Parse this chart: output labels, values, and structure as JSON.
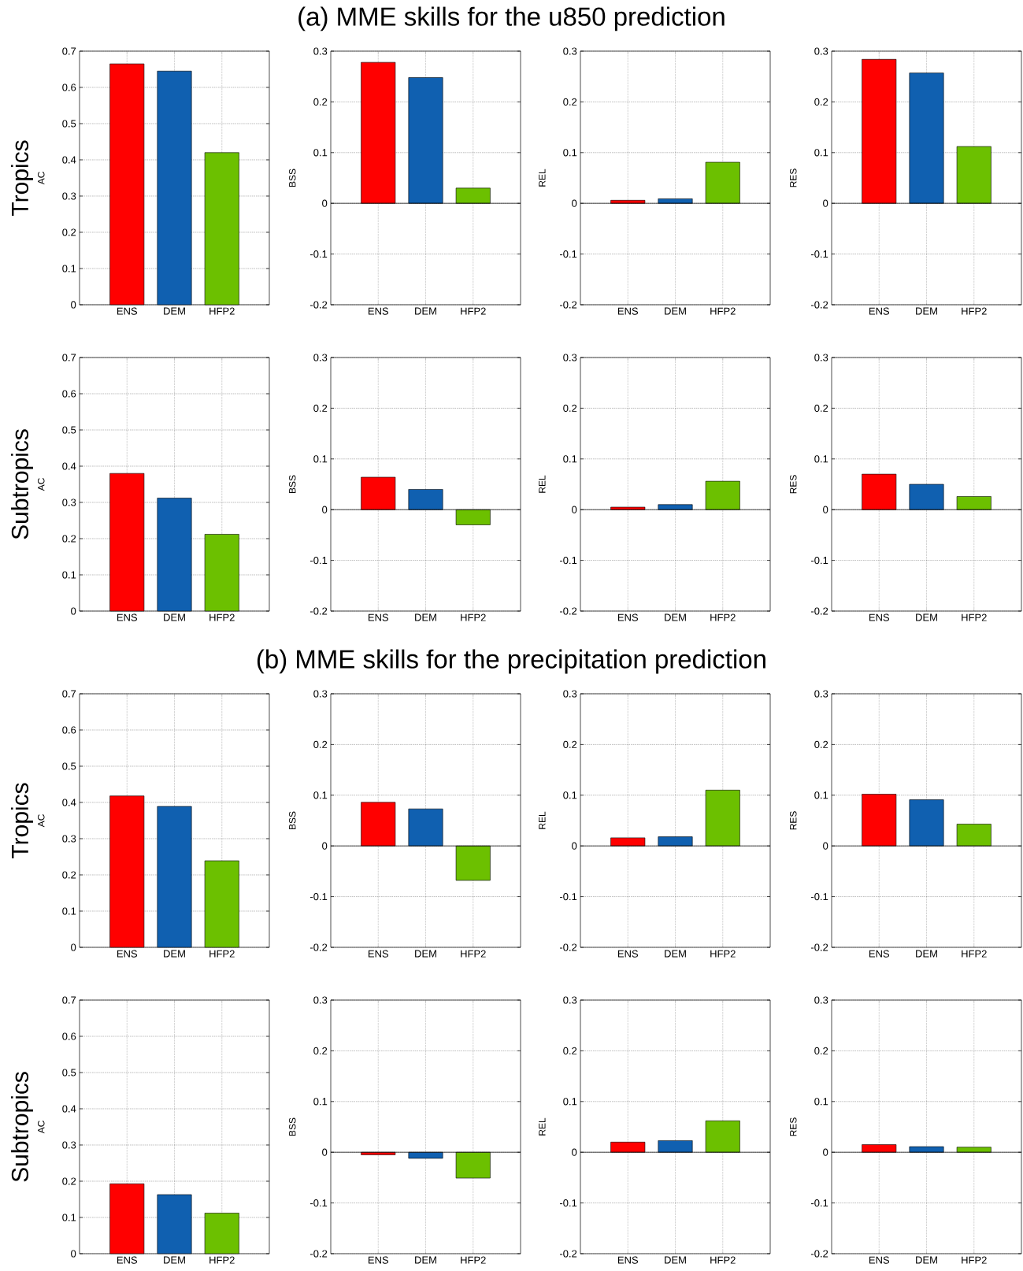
{
  "chart_data": [
    {
      "type": "other",
      "title": "(a) MME skills for the u850 prediction"
    },
    {
      "type": "bar",
      "annotations": [
        "Tropics"
      ],
      "ylabel": "AC",
      "categories": [
        "ENS",
        "DEM",
        "HFP2"
      ],
      "values": [
        0.665,
        0.645,
        0.42
      ],
      "colors": [
        "#ff0000",
        "#1060b0",
        "#6cc000"
      ],
      "ylim": [
        0,
        0.7
      ],
      "yticks": [
        0,
        0.1,
        0.2,
        0.3,
        0.4,
        0.5,
        0.6,
        0.7
      ],
      "grid": true
    },
    {
      "type": "bar",
      "ylabel": "BSS",
      "categories": [
        "ENS",
        "DEM",
        "HFP2"
      ],
      "values": [
        0.278,
        0.248,
        0.03
      ],
      "colors": [
        "#ff0000",
        "#1060b0",
        "#6cc000"
      ],
      "ylim": [
        -0.2,
        0.3
      ],
      "yticks": [
        -0.2,
        -0.1,
        0,
        0.1,
        0.2,
        0.3
      ],
      "grid": true,
      "ref_lines": [
        {
          "axis": "y",
          "value": 0
        }
      ]
    },
    {
      "type": "bar",
      "ylabel": "REL",
      "categories": [
        "ENS",
        "DEM",
        "HFP2"
      ],
      "values": [
        0.006,
        0.009,
        0.081
      ],
      "colors": [
        "#ff0000",
        "#1060b0",
        "#6cc000"
      ],
      "ylim": [
        -0.2,
        0.3
      ],
      "yticks": [
        -0.2,
        -0.1,
        0,
        0.1,
        0.2,
        0.3
      ],
      "grid": true,
      "ref_lines": [
        {
          "axis": "y",
          "value": 0
        }
      ]
    },
    {
      "type": "bar",
      "ylabel": "RES",
      "categories": [
        "ENS",
        "DEM",
        "HFP2"
      ],
      "values": [
        0.284,
        0.257,
        0.112
      ],
      "colors": [
        "#ff0000",
        "#1060b0",
        "#6cc000"
      ],
      "ylim": [
        -0.2,
        0.3
      ],
      "yticks": [
        -0.2,
        -0.1,
        0,
        0.1,
        0.2,
        0.3
      ],
      "grid": true,
      "ref_lines": [
        {
          "axis": "y",
          "value": 0
        }
      ]
    },
    {
      "type": "bar",
      "annotations": [
        "Subtropics"
      ],
      "ylabel": "AC",
      "categories": [
        "ENS",
        "DEM",
        "HFP2"
      ],
      "values": [
        0.38,
        0.312,
        0.212
      ],
      "colors": [
        "#ff0000",
        "#1060b0",
        "#6cc000"
      ],
      "ylim": [
        0,
        0.7
      ],
      "yticks": [
        0,
        0.1,
        0.2,
        0.3,
        0.4,
        0.5,
        0.6,
        0.7
      ],
      "grid": true
    },
    {
      "type": "bar",
      "ylabel": "BSS",
      "categories": [
        "ENS",
        "DEM",
        "HFP2"
      ],
      "values": [
        0.064,
        0.04,
        -0.03
      ],
      "colors": [
        "#ff0000",
        "#1060b0",
        "#6cc000"
      ],
      "ylim": [
        -0.2,
        0.3
      ],
      "yticks": [
        -0.2,
        -0.1,
        0,
        0.1,
        0.2,
        0.3
      ],
      "grid": true,
      "ref_lines": [
        {
          "axis": "y",
          "value": 0
        }
      ]
    },
    {
      "type": "bar",
      "ylabel": "REL",
      "categories": [
        "ENS",
        "DEM",
        "HFP2"
      ],
      "values": [
        0.005,
        0.01,
        0.056
      ],
      "colors": [
        "#ff0000",
        "#1060b0",
        "#6cc000"
      ],
      "ylim": [
        -0.2,
        0.3
      ],
      "yticks": [
        -0.2,
        -0.1,
        0,
        0.1,
        0.2,
        0.3
      ],
      "grid": true,
      "ref_lines": [
        {
          "axis": "y",
          "value": 0
        }
      ]
    },
    {
      "type": "bar",
      "ylabel": "RES",
      "categories": [
        "ENS",
        "DEM",
        "HFP2"
      ],
      "values": [
        0.07,
        0.05,
        0.026
      ],
      "colors": [
        "#ff0000",
        "#1060b0",
        "#6cc000"
      ],
      "ylim": [
        -0.2,
        0.3
      ],
      "yticks": [
        -0.2,
        -0.1,
        0,
        0.1,
        0.2,
        0.3
      ],
      "grid": true,
      "ref_lines": [
        {
          "axis": "y",
          "value": 0
        }
      ]
    },
    {
      "type": "other",
      "title": "(b) MME skills for the precipitation prediction"
    },
    {
      "type": "bar",
      "annotations": [
        "Tropics"
      ],
      "ylabel": "AC",
      "categories": [
        "ENS",
        "DEM",
        "HFP2"
      ],
      "values": [
        0.418,
        0.389,
        0.239
      ],
      "colors": [
        "#ff0000",
        "#1060b0",
        "#6cc000"
      ],
      "ylim": [
        0,
        0.7
      ],
      "yticks": [
        0,
        0.1,
        0.2,
        0.3,
        0.4,
        0.5,
        0.6,
        0.7
      ],
      "grid": true
    },
    {
      "type": "bar",
      "ylabel": "BSS",
      "categories": [
        "ENS",
        "DEM",
        "HFP2"
      ],
      "values": [
        0.086,
        0.073,
        -0.068
      ],
      "colors": [
        "#ff0000",
        "#1060b0",
        "#6cc000"
      ],
      "ylim": [
        -0.2,
        0.3
      ],
      "yticks": [
        -0.2,
        -0.1,
        0,
        0.1,
        0.2,
        0.3
      ],
      "grid": true,
      "ref_lines": [
        {
          "axis": "y",
          "value": 0
        }
      ]
    },
    {
      "type": "bar",
      "ylabel": "REL",
      "categories": [
        "ENS",
        "DEM",
        "HFP2"
      ],
      "values": [
        0.016,
        0.018,
        0.11
      ],
      "colors": [
        "#ff0000",
        "#1060b0",
        "#6cc000"
      ],
      "ylim": [
        -0.2,
        0.3
      ],
      "yticks": [
        -0.2,
        -0.1,
        0,
        0.1,
        0.2,
        0.3
      ],
      "grid": true,
      "ref_lines": [
        {
          "axis": "y",
          "value": 0
        }
      ]
    },
    {
      "type": "bar",
      "ylabel": "RES",
      "categories": [
        "ENS",
        "DEM",
        "HFP2"
      ],
      "values": [
        0.102,
        0.091,
        0.043
      ],
      "colors": [
        "#ff0000",
        "#1060b0",
        "#6cc000"
      ],
      "ylim": [
        -0.2,
        0.3
      ],
      "yticks": [
        -0.2,
        -0.1,
        0,
        0.1,
        0.2,
        0.3
      ],
      "grid": true,
      "ref_lines": [
        {
          "axis": "y",
          "value": 0
        }
      ]
    },
    {
      "type": "bar",
      "annotations": [
        "Subtropics"
      ],
      "ylabel": "AC",
      "categories": [
        "ENS",
        "DEM",
        "HFP2"
      ],
      "values": [
        0.193,
        0.163,
        0.112
      ],
      "colors": [
        "#ff0000",
        "#1060b0",
        "#6cc000"
      ],
      "ylim": [
        0,
        0.7
      ],
      "yticks": [
        0,
        0.1,
        0.2,
        0.3,
        0.4,
        0.5,
        0.6,
        0.7
      ],
      "grid": true
    },
    {
      "type": "bar",
      "ylabel": "BSS",
      "categories": [
        "ENS",
        "DEM",
        "HFP2"
      ],
      "values": [
        -0.005,
        -0.012,
        -0.051
      ],
      "colors": [
        "#ff0000",
        "#1060b0",
        "#6cc000"
      ],
      "ylim": [
        -0.2,
        0.3
      ],
      "yticks": [
        -0.2,
        -0.1,
        0,
        0.1,
        0.2,
        0.3
      ],
      "grid": true,
      "ref_lines": [
        {
          "axis": "y",
          "value": 0
        }
      ]
    },
    {
      "type": "bar",
      "ylabel": "REL",
      "categories": [
        "ENS",
        "DEM",
        "HFP2"
      ],
      "values": [
        0.02,
        0.023,
        0.062
      ],
      "colors": [
        "#ff0000",
        "#1060b0",
        "#6cc000"
      ],
      "ylim": [
        -0.2,
        0.3
      ],
      "yticks": [
        -0.2,
        -0.1,
        0,
        0.1,
        0.2,
        0.3
      ],
      "grid": true,
      "ref_lines": [
        {
          "axis": "y",
          "value": 0
        }
      ]
    },
    {
      "type": "bar",
      "ylabel": "RES",
      "categories": [
        "ENS",
        "DEM",
        "HFP2"
      ],
      "values": [
        0.015,
        0.011,
        0.01
      ],
      "colors": [
        "#ff0000",
        "#1060b0",
        "#6cc000"
      ],
      "ylim": [
        -0.2,
        0.3
      ],
      "yticks": [
        -0.2,
        -0.1,
        0,
        0.1,
        0.2,
        0.3
      ],
      "grid": true,
      "ref_lines": [
        {
          "axis": "y",
          "value": 0
        }
      ]
    }
  ]
}
